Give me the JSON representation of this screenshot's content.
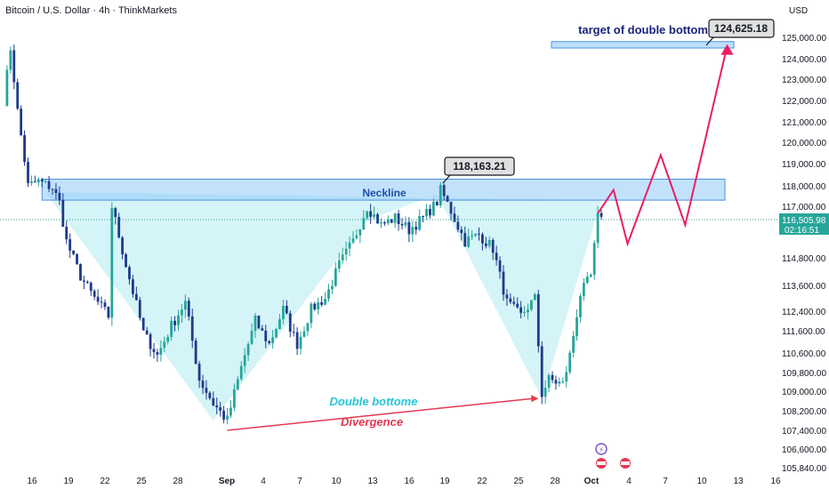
{
  "chart_data": {
    "type": "candlestick",
    "title": "Bitcoin / U.S. Dollar · 4h · ThinkMarkets",
    "currency": "USD",
    "y_ticks": [
      "125,000.00",
      "124,000.00",
      "123,000.00",
      "122,000.00",
      "121,000.00",
      "120,000.00",
      "119,000.00",
      "118,000.00",
      "117,000.00",
      "114,800.00",
      "113,600.00",
      "112,400.00",
      "111,600.00",
      "110,600.00",
      "109,800.00",
      "109,000.00",
      "108,200.00",
      "107,400.00",
      "106,600.00",
      "105,840.00"
    ],
    "x_ticks": [
      "16",
      "19",
      "22",
      "25",
      "28",
      "Sep",
      "4",
      "7",
      "10",
      "13",
      "16",
      "19",
      "22",
      "25",
      "28",
      "Oct",
      "4",
      "7",
      "10",
      "13",
      "16"
    ],
    "last_price": "116,505.98",
    "countdown": "02:16:51",
    "neckline_label": "Neckline",
    "neckline_zone": [
      117300,
      118300
    ],
    "target_label": "target of double bottom",
    "target_value": "124,625.18",
    "target_zone": [
      124500,
      124800
    ],
    "peak_callout": "118,163.21",
    "annotation_double_bottom": "Double bottome",
    "annotation_divergence": "Divergence",
    "price_range": [
      105600,
      125800
    ],
    "projection_path": [
      {
        "t": 170.0,
        "p": 116700
      },
      {
        "t": 174.5,
        "p": 117800
      },
      {
        "t": 178.5,
        "p": 115400
      },
      {
        "t": 188.0,
        "p": 119400
      },
      {
        "t": 195.0,
        "p": 116200
      },
      {
        "t": 207.0,
        "p": 124600
      }
    ],
    "divergence_line": [
      {
        "t": 64,
        "p": 107400
      },
      {
        "t": 153,
        "p": 108700
      }
    ],
    "colors": {
      "up": "#26a69a",
      "down": "#1e3a8a",
      "zone": "#90caf9",
      "fill": "#b2ebf2",
      "arrow": "#e91e63",
      "divergence": "#e53950"
    }
  }
}
